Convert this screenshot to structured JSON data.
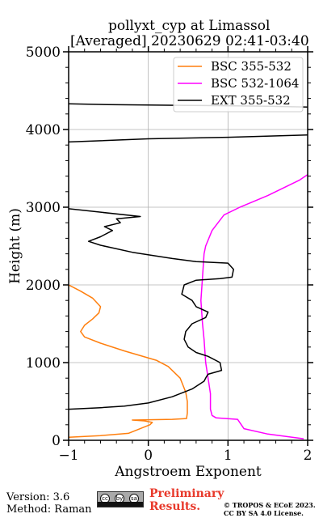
{
  "chart_data": {
    "type": "line",
    "title": "pollyxt_cyp at Limassol",
    "subtitle": "[Averaged] 20230629 02:41-03:40",
    "xlabel": "Angstroem Exponent",
    "ylabel": "Height (m)",
    "xlim": [
      -1,
      2
    ],
    "ylim": [
      0,
      5000
    ],
    "xticks": [
      "−1",
      "0",
      "1",
      "2"
    ],
    "yticks": [
      "0",
      "1000",
      "2000",
      "3000",
      "4000",
      "5000"
    ],
    "grid": true,
    "legend_position": "top-right",
    "series": [
      {
        "name": "BSC 355-532",
        "color": "#ff7f0e",
        "points": [
          [
            -1.0,
            40
          ],
          [
            -0.6,
            60
          ],
          [
            -0.25,
            90
          ],
          [
            0.02,
            200
          ],
          [
            0.05,
            230
          ],
          [
            -0.05,
            250
          ],
          [
            -0.2,
            260
          ],
          [
            0.3,
            270
          ],
          [
            0.48,
            280
          ],
          [
            0.49,
            350
          ],
          [
            0.49,
            500
          ],
          [
            0.47,
            620
          ],
          [
            0.4,
            800
          ],
          [
            0.25,
            950
          ],
          [
            0.1,
            1030
          ],
          [
            -0.3,
            1150
          ],
          [
            -0.6,
            1250
          ],
          [
            -0.8,
            1330
          ],
          [
            -0.85,
            1400
          ],
          [
            -0.8,
            1480
          ],
          [
            -0.7,
            1560
          ],
          [
            -0.62,
            1640
          ],
          [
            -0.6,
            1720
          ],
          [
            -0.7,
            1830
          ],
          [
            -0.85,
            1920
          ],
          [
            -1.0,
            2000
          ]
        ]
      },
      {
        "name": "BSC 532-1064",
        "color": "#ff00ff",
        "points": [
          [
            1.95,
            20
          ],
          [
            1.5,
            80
          ],
          [
            1.2,
            150
          ],
          [
            1.12,
            270
          ],
          [
            0.85,
            290
          ],
          [
            0.8,
            320
          ],
          [
            0.78,
            400
          ],
          [
            0.78,
            600
          ],
          [
            0.75,
            800
          ],
          [
            0.72,
            1000
          ],
          [
            0.7,
            1300
          ],
          [
            0.68,
            1500
          ],
          [
            0.66,
            1800
          ],
          [
            0.68,
            2100
          ],
          [
            0.7,
            2400
          ],
          [
            0.72,
            2500
          ],
          [
            0.8,
            2700
          ],
          [
            0.95,
            2900
          ],
          [
            1.15,
            3000
          ],
          [
            1.5,
            3150
          ],
          [
            1.9,
            3350
          ],
          [
            2.0,
            3420
          ]
        ]
      },
      {
        "name": "EXT 355-532",
        "color": "#000000",
        "points": [
          [
            -1.0,
            400
          ],
          [
            -0.6,
            420
          ],
          [
            -0.3,
            440
          ],
          [
            0.0,
            480
          ],
          [
            0.3,
            560
          ],
          [
            0.55,
            660
          ],
          [
            0.7,
            760
          ],
          [
            0.73,
            820
          ],
          [
            0.75,
            850
          ],
          [
            0.92,
            900
          ],
          [
            0.9,
            1000
          ],
          [
            0.75,
            1080
          ],
          [
            0.6,
            1130
          ],
          [
            0.5,
            1200
          ],
          [
            0.45,
            1300
          ],
          [
            0.47,
            1400
          ],
          [
            0.55,
            1500
          ],
          [
            0.72,
            1580
          ],
          [
            0.75,
            1650
          ],
          [
            0.6,
            1720
          ],
          [
            0.55,
            1800
          ],
          [
            0.42,
            1880
          ],
          [
            0.45,
            2000
          ],
          [
            0.6,
            2060
          ],
          [
            0.9,
            2080
          ],
          [
            1.05,
            2100
          ],
          [
            1.07,
            2200
          ],
          [
            1.0,
            2280
          ],
          [
            0.6,
            2300
          ],
          [
            0.3,
            2340
          ],
          [
            -0.2,
            2420
          ],
          [
            -0.6,
            2510
          ],
          [
            -0.75,
            2560
          ],
          [
            -0.6,
            2620
          ],
          [
            -0.45,
            2700
          ],
          [
            -0.55,
            2750
          ],
          [
            -0.35,
            2800
          ],
          [
            -0.4,
            2850
          ],
          [
            -0.1,
            2880
          ],
          [
            -1.0,
            2980
          ],
          [
            null,
            null
          ],
          [
            -1.0,
            3840
          ],
          [
            0.0,
            3880
          ],
          [
            1.0,
            3900
          ],
          [
            2.0,
            3930
          ],
          [
            null,
            null
          ],
          [
            -1.0,
            4330
          ],
          [
            -0.5,
            4320
          ],
          [
            0.5,
            4310
          ],
          [
            1.5,
            4300
          ],
          [
            2.0,
            4290
          ]
        ]
      }
    ]
  },
  "footer": {
    "version": "Version: 3.6",
    "method": "Method: Raman",
    "preliminary_line1": "Preliminary",
    "preliminary_line2": "Results.",
    "copyright_line1": "© TROPOS & ECoE 2023.",
    "copyright_line2": "CC BY SA 4.0 License.",
    "license_badge_glyphs": [
      "cc",
      "by",
      "sa"
    ]
  }
}
